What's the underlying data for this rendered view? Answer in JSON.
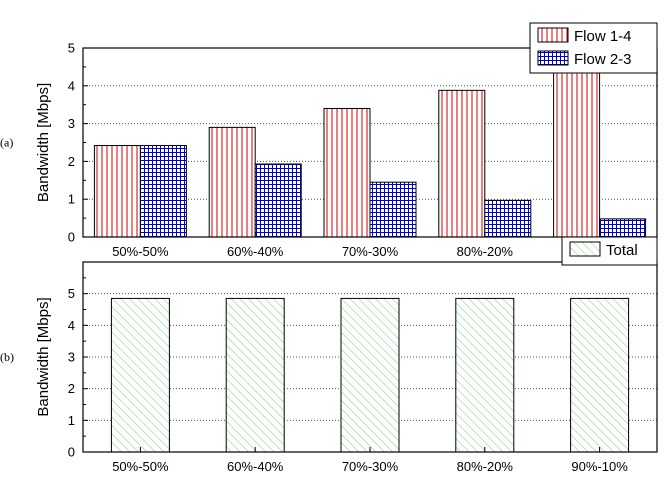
{
  "chart_data": [
    {
      "type": "bar",
      "panel_label": "(a)",
      "categories": [
        "50%-50%",
        "60%-40%",
        "70%-30%",
        "80%-20%",
        "90%-10%"
      ],
      "series": [
        {
          "name": "Flow 1-4",
          "values": [
            2.42,
            2.9,
            3.4,
            3.88,
            4.37
          ],
          "color": "#d00000",
          "pattern": "vertical-lines"
        },
        {
          "name": "Flow 2-3",
          "values": [
            2.42,
            1.93,
            1.45,
            0.97,
            0.48
          ],
          "color": "#0000cc",
          "pattern": "grid"
        }
      ],
      "ylabel": "Bandwidth [Mbps]",
      "ylim": [
        0,
        5
      ],
      "yticks": [
        "0",
        "1",
        "2",
        "3",
        "4",
        "5"
      ],
      "grid": "horizontal dotted",
      "legend": "top-right"
    },
    {
      "type": "bar",
      "panel_label": "(b)",
      "categories": [
        "50%-50%",
        "60%-40%",
        "70%-30%",
        "80%-20%",
        "90%-10%"
      ],
      "series": [
        {
          "name": "Total",
          "values": [
            4.85,
            4.85,
            4.85,
            4.85,
            4.85
          ],
          "color": "#33a033",
          "pattern": "diagonal-lines"
        }
      ],
      "ylabel": "Bandwidth [Mbps]",
      "ylim": [
        0,
        6
      ],
      "yticks": [
        "0",
        "1",
        "2",
        "3",
        "4",
        "5"
      ],
      "grid": "horizontal dotted",
      "legend": "top-right"
    }
  ]
}
